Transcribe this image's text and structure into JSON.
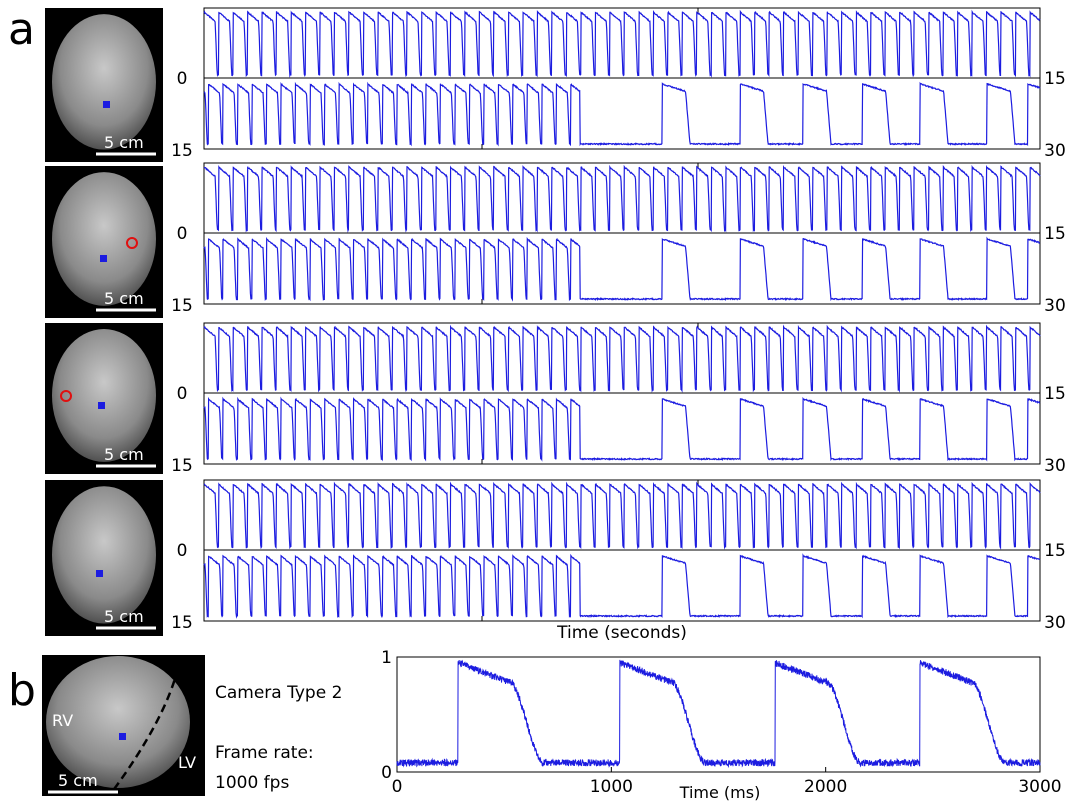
{
  "chart_data": [
    {
      "type": "trace-grid",
      "label": "a",
      "xlabel": "Time (seconds)",
      "rows": [
        {
          "scale_bar": "5 cm",
          "top_ticks": [
            0,
            15
          ],
          "bottom_ticks": [
            15,
            30
          ]
        },
        {
          "scale_bar": "5 cm",
          "top_ticks": [
            0,
            15
          ],
          "bottom_ticks": [
            15,
            30
          ]
        },
        {
          "scale_bar": "5 cm",
          "top_ticks": [
            0,
            15
          ],
          "bottom_ticks": [
            15,
            30
          ]
        },
        {
          "scale_bar": "5 cm",
          "top_ticks": [
            0,
            15
          ],
          "bottom_ticks": [
            15,
            30
          ]
        }
      ],
      "fast_period_s": 0.26,
      "fast_apd_s": 0.2,
      "pacing_stop_s": 21.75,
      "slow_beats_s": [
        23.22,
        24.62,
        25.75,
        26.81,
        27.85,
        29.05,
        29.78
      ],
      "slow_apd_s": 0.42,
      "color": "#1c1ce0"
    },
    {
      "type": "line",
      "label": "b",
      "camera": "Camera Type 2",
      "frame_rate_label": "Frame rate:",
      "frame_rate": "1000 fps",
      "scale_bar": "5 cm",
      "regions": [
        "RV",
        "LV"
      ],
      "xlabel": "Time (ms)",
      "xlim": [
        0,
        3000
      ],
      "xticks": [
        0,
        1000,
        2000,
        3000
      ],
      "ylim": [
        0,
        1
      ],
      "yticks": [
        0,
        1
      ],
      "upstrokes_ms": [
        285,
        1040,
        1764,
        2440
      ],
      "apd_ms": 400,
      "peak": 0.95,
      "baseline": 0.08,
      "color": "#1c1ce0"
    }
  ]
}
